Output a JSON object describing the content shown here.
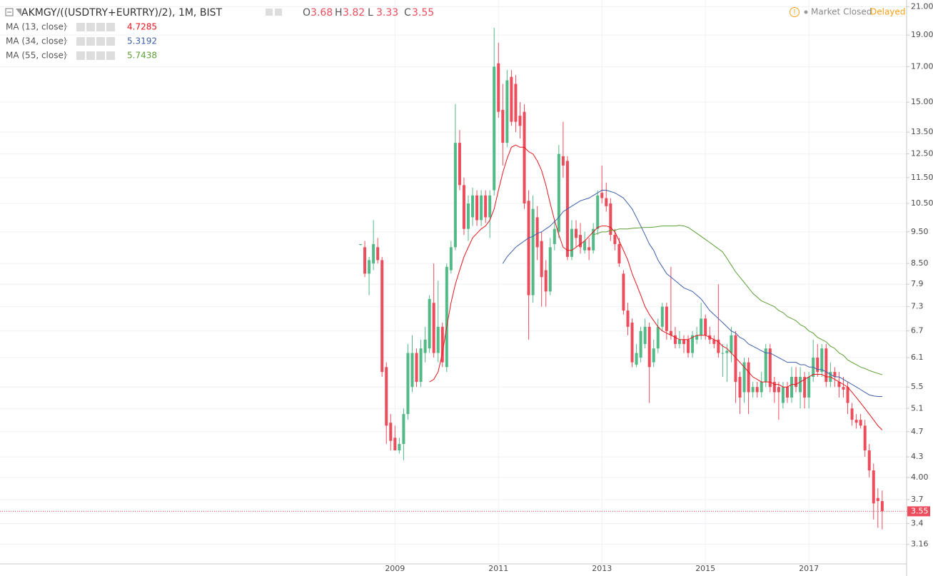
{
  "chart_data": {
    "type": "candlestick",
    "title": "AKMGY/((USDTRY+EURTRY)/2), 1M, BIST",
    "ohlc_labels": [
      "O",
      "H",
      "L",
      "C"
    ],
    "status": "Market Closed",
    "delay": "Delayed",
    "up_color": "#53b987",
    "down_color": "#eb4d5c",
    "log_scale": true,
    "grid": true,
    "ylim": [
      2.95,
      21.5
    ],
    "yticks": [
      {
        "value": 21,
        "label": "21.00"
      },
      {
        "value": 19,
        "label": "19.00"
      },
      {
        "value": 17,
        "label": "17.00"
      },
      {
        "value": 15,
        "label": "15.00"
      },
      {
        "value": 13.5,
        "label": "13.50"
      },
      {
        "value": 12.5,
        "label": "12.50"
      },
      {
        "value": 11.5,
        "label": "11.50"
      },
      {
        "value": 10.5,
        "label": "10.50"
      },
      {
        "value": 9.5,
        "label": "9.50"
      },
      {
        "value": 8.5,
        "label": "8.50"
      },
      7.9,
      7.3,
      6.7,
      6.1,
      5.5,
      5.1,
      4.7,
      4.3,
      {
        "value": 4,
        "label": "4.00"
      },
      3.7,
      3.4,
      3.16
    ],
    "categories": [
      null,
      null,
      null,
      null,
      null,
      null,
      null,
      null,
      "2009",
      null,
      null,
      null,
      null,
      null,
      null,
      null,
      null,
      null,
      null,
      null,
      null,
      null,
      null,
      null,
      null,
      null,
      null,
      null,
      null,
      null,
      null,
      null,
      "2011",
      null,
      null,
      null,
      null,
      null,
      null,
      null,
      null,
      null,
      null,
      null,
      null,
      null,
      null,
      null,
      null,
      null,
      null,
      null,
      null,
      null,
      null,
      null,
      "2013",
      null,
      null,
      null,
      null,
      null,
      null,
      null,
      null,
      null,
      null,
      null,
      null,
      null,
      null,
      null,
      null,
      null,
      null,
      null,
      null,
      null,
      null,
      null,
      "2015",
      null,
      null,
      null,
      null,
      null,
      null,
      null,
      null,
      null,
      null,
      null,
      null,
      null,
      null,
      null,
      null,
      null,
      null,
      null,
      null,
      null,
      null,
      null,
      "2017",
      null,
      null,
      null,
      null,
      null,
      null,
      null,
      null,
      null,
      null,
      null,
      null,
      null,
      null,
      null,
      null,
      null
    ],
    "open": [
      9.08,
      9.0,
      8.2,
      8.5,
      9.0,
      8.6,
      5.9,
      4.85,
      4.6,
      4.4,
      4.5,
      5.0,
      5.5,
      6.2,
      5.6,
      6.2,
      6.3,
      7.4,
      6.2,
      6.8,
      5.9,
      8.3,
      9.0,
      13.0,
      11.2,
      9.6,
      10.0,
      10.8,
      9.9,
      10.8,
      10.0,
      11.0,
      17.2,
      14.6,
      13.0,
      16.4,
      16.0,
      14.3,
      14.5,
      10.6,
      7.6,
      10.0,
      9.2,
      8.3,
      7.7,
      9.1,
      9.5,
      12.4,
      12.2,
      8.7,
      9.6,
      9.4,
      8.9,
      9.0,
      8.9,
      9.6,
      10.9,
      10.7,
      10.5,
      9.4,
      9.1,
      8.2,
      7.2,
      6.9,
      5.95,
      6.1,
      6.4,
      6.8,
      6.0,
      6.3,
      6.8,
      7.3,
      6.7,
      6.6,
      6.4,
      6.5,
      6.5,
      6.2,
      6.5,
      6.6,
      7.0,
      6.6,
      6.5,
      6.5,
      6.2,
      6.2,
      6.2,
      6.6,
      5.7,
      5.4,
      6.0,
      5.4,
      5.5,
      5.4,
      5.6,
      6.3,
      5.6,
      5.5,
      5.2,
      5.5,
      5.3,
      5.7,
      5.4,
      5.7,
      5.3,
      5.7,
      6.1,
      5.8,
      6.3,
      5.6,
      5.8,
      5.6,
      5.5,
      5.5,
      5.1,
      4.9,
      4.9,
      4.8,
      4.4,
      4.1,
      3.72,
      3.68
    ],
    "high": [
      9.1,
      9.2,
      8.7,
      9.9,
      9.3,
      8.7,
      6.0,
      5.0,
      4.8,
      4.6,
      5.1,
      6.4,
      6.6,
      6.3,
      6.5,
      6.8,
      7.6,
      8.5,
      8.0,
      6.9,
      8.5,
      9.2,
      14.9,
      13.6,
      11.5,
      10.8,
      11.1,
      11.0,
      11.0,
      11.0,
      11.0,
      19.5,
      18.5,
      16.0,
      16.8,
      16.8,
      16.5,
      15.0,
      14.9,
      11.0,
      10.8,
      10.4,
      9.5,
      8.6,
      9.3,
      9.9,
      12.9,
      14.0,
      12.4,
      9.9,
      9.9,
      9.8,
      9.5,
      9.3,
      9.8,
      11.0,
      12.0,
      11.3,
      10.7,
      9.6,
      9.3,
      8.3,
      7.4,
      7.0,
      6.4,
      6.8,
      7.0,
      6.9,
      6.5,
      7.0,
      7.4,
      7.4,
      8.4,
      6.8,
      6.7,
      6.6,
      6.6,
      6.7,
      6.8,
      7.4,
      7.1,
      6.8,
      6.6,
      7.9,
      6.4,
      6.4,
      6.8,
      6.7,
      5.8,
      6.1,
      6.1,
      5.6,
      5.6,
      5.8,
      6.4,
      6.4,
      5.7,
      5.6,
      5.6,
      5.6,
      5.9,
      5.9,
      5.9,
      5.8,
      5.8,
      6.5,
      6.4,
      6.4,
      6.4,
      6.0,
      5.9,
      5.8,
      5.7,
      5.6,
      5.2,
      5.0,
      5.0,
      4.9,
      4.5,
      4.2,
      3.85,
      3.82
    ],
    "low": [
      9.05,
      8.1,
      7.6,
      8.3,
      8.5,
      5.7,
      4.5,
      4.4,
      4.4,
      4.35,
      4.25,
      4.9,
      5.4,
      5.5,
      5.5,
      6.0,
      6.2,
      6.1,
      6.0,
      5.9,
      5.8,
      8.2,
      8.9,
      11.0,
      9.4,
      9.2,
      9.7,
      9.7,
      9.7,
      9.8,
      9.3,
      10.8,
      14.2,
      12.0,
      12.8,
      13.8,
      13.5,
      13.2,
      10.3,
      6.5,
      7.4,
      8.6,
      7.3,
      7.3,
      7.6,
      8.9,
      9.3,
      11.5,
      8.6,
      8.6,
      9.0,
      8.8,
      8.8,
      8.6,
      8.8,
      9.4,
      10.5,
      10.2,
      9.2,
      8.9,
      8.4,
      7.1,
      6.6,
      5.9,
      5.9,
      6.0,
      6.3,
      5.2,
      5.9,
      6.2,
      6.7,
      6.5,
      6.5,
      6.3,
      6.3,
      6.2,
      6.1,
      6.1,
      6.4,
      6.5,
      6.5,
      6.4,
      6.3,
      6.1,
      5.7,
      5.6,
      6.0,
      5.2,
      5.0,
      5.2,
      5.0,
      5.3,
      5.3,
      5.3,
      5.5,
      5.4,
      5.2,
      4.9,
      5.1,
      5.2,
      5.2,
      5.4,
      5.1,
      5.1,
      5.1,
      5.6,
      5.7,
      5.7,
      5.5,
      5.5,
      5.5,
      5.3,
      5.3,
      5.0,
      4.8,
      4.75,
      4.75,
      4.3,
      4.0,
      3.45,
      3.35,
      3.33
    ],
    "close": [
      9.1,
      8.2,
      8.6,
      9.1,
      8.6,
      5.8,
      4.8,
      4.55,
      4.4,
      4.5,
      5.0,
      6.2,
      6.2,
      5.6,
      6.3,
      6.5,
      7.5,
      6.2,
      6.8,
      6.0,
      8.4,
      9.0,
      13.0,
      11.2,
      9.6,
      10.5,
      10.8,
      9.9,
      10.8,
      10.0,
      10.8,
      17.0,
      14.5,
      13.0,
      16.2,
      14.0,
      14.0,
      13.8,
      10.5,
      7.6,
      10.3,
      9.0,
      8.1,
      7.7,
      9.0,
      9.6,
      12.5,
      12.0,
      8.7,
      9.6,
      9.3,
      9.0,
      9.2,
      8.9,
      9.6,
      10.8,
      10.7,
      10.4,
      9.4,
      9.1,
      8.5,
      7.2,
      6.8,
      6.0,
      6.2,
      6.7,
      6.8,
      5.9,
      6.3,
      6.8,
      7.3,
      6.7,
      6.6,
      6.4,
      6.5,
      6.4,
      6.2,
      6.6,
      6.6,
      7.0,
      6.6,
      6.5,
      6.4,
      6.2,
      6.2,
      6.25,
      6.6,
      5.6,
      5.3,
      6.0,
      5.4,
      5.5,
      5.4,
      5.6,
      6.3,
      5.5,
      5.4,
      5.4,
      5.5,
      5.3,
      5.7,
      5.5,
      5.7,
      5.3,
      5.7,
      6.1,
      5.8,
      6.3,
      5.6,
      5.8,
      5.7,
      5.5,
      5.45,
      5.2,
      4.9,
      4.85,
      4.8,
      4.4,
      4.1,
      3.65,
      3.68,
      3.55
    ],
    "series": [
      {
        "name": "MA (13, close)",
        "color": "#e5161d",
        "values": [
          null,
          null,
          null,
          null,
          null,
          null,
          null,
          null,
          null,
          null,
          null,
          null,
          null,
          null,
          null,
          null,
          5.6,
          5.65,
          5.8,
          6.2,
          6.8,
          7.4,
          7.9,
          8.3,
          8.7,
          9.0,
          9.3,
          9.45,
          9.6,
          9.7,
          9.9,
          10.3,
          11.0,
          11.7,
          12.3,
          12.8,
          12.9,
          12.8,
          12.8,
          12.6,
          12.5,
          12.2,
          11.8,
          11.2,
          10.5,
          9.9,
          9.4,
          9.0,
          8.9,
          8.9,
          9.0,
          9.1,
          9.2,
          9.35,
          9.5,
          9.65,
          9.7,
          9.7,
          9.65,
          9.5,
          9.2,
          8.9,
          8.6,
          8.2,
          7.9,
          7.6,
          7.3,
          7.1,
          6.95,
          6.8,
          6.7,
          6.65,
          6.6,
          6.55,
          6.5,
          6.5,
          6.5,
          6.55,
          6.6,
          6.6,
          6.6,
          6.55,
          6.5,
          6.45,
          6.35,
          6.3,
          6.2,
          6.1,
          6.0,
          5.9,
          5.8,
          5.7,
          5.65,
          5.6,
          5.6,
          5.6,
          5.55,
          5.55,
          5.5,
          5.5,
          5.55,
          5.55,
          5.6,
          5.65,
          5.7,
          5.75,
          5.75,
          5.75,
          5.7,
          5.7,
          5.65,
          5.6,
          5.55,
          5.5,
          5.4,
          5.3,
          5.2,
          5.1,
          5.0,
          4.9,
          4.8,
          4.7285
        ]
      },
      {
        "name": "MA (34, close)",
        "color": "#3d5fa8",
        "values": [
          null,
          null,
          null,
          null,
          null,
          null,
          null,
          null,
          null,
          null,
          null,
          null,
          null,
          null,
          null,
          null,
          null,
          null,
          null,
          null,
          null,
          null,
          null,
          null,
          null,
          null,
          null,
          null,
          null,
          null,
          null,
          null,
          null,
          8.5,
          8.7,
          8.85,
          9.0,
          9.1,
          9.2,
          9.3,
          9.35,
          9.45,
          9.5,
          9.6,
          9.7,
          9.85,
          10.0,
          10.2,
          10.3,
          10.4,
          10.5,
          10.6,
          10.65,
          10.7,
          10.8,
          10.9,
          11.0,
          11.0,
          10.95,
          10.9,
          10.8,
          10.7,
          10.5,
          10.3,
          10.0,
          9.7,
          9.4,
          9.1,
          8.9,
          8.6,
          8.4,
          8.2,
          8.1,
          8.0,
          7.9,
          7.8,
          7.75,
          7.7,
          7.6,
          7.5,
          7.35,
          7.2,
          7.1,
          7.0,
          6.9,
          6.8,
          6.7,
          6.65,
          6.55,
          6.5,
          6.4,
          6.35,
          6.3,
          6.25,
          6.2,
          6.2,
          6.15,
          6.1,
          6.05,
          6.0,
          6.0,
          6.0,
          5.95,
          5.95,
          5.9,
          5.9,
          5.85,
          5.85,
          5.8,
          5.75,
          5.7,
          5.7,
          5.65,
          5.6,
          5.55,
          5.5,
          5.45,
          5.4,
          5.35,
          5.33,
          5.32,
          5.3192
        ]
      },
      {
        "name": "MA (55, close)",
        "color": "#5c9e35",
        "values": [
          null,
          null,
          null,
          null,
          null,
          null,
          null,
          null,
          null,
          null,
          null,
          null,
          null,
          null,
          null,
          null,
          null,
          null,
          null,
          null,
          null,
          null,
          null,
          null,
          null,
          null,
          null,
          null,
          null,
          null,
          null,
          null,
          null,
          null,
          null,
          null,
          null,
          null,
          null,
          null,
          null,
          null,
          null,
          null,
          null,
          null,
          null,
          null,
          null,
          null,
          null,
          null,
          null,
          null,
          9.4,
          9.45,
          9.5,
          9.5,
          9.55,
          9.55,
          9.6,
          9.6,
          9.6,
          9.62,
          9.63,
          9.64,
          9.65,
          9.65,
          9.66,
          9.68,
          9.7,
          9.7,
          9.7,
          9.7,
          9.72,
          9.7,
          9.65,
          9.55,
          9.45,
          9.35,
          9.25,
          9.15,
          9.05,
          8.95,
          8.85,
          8.65,
          8.45,
          8.25,
          8.1,
          7.95,
          7.8,
          7.65,
          7.55,
          7.45,
          7.4,
          7.35,
          7.3,
          7.2,
          7.15,
          7.05,
          7.0,
          6.95,
          6.85,
          6.8,
          6.7,
          6.65,
          6.55,
          6.5,
          6.45,
          6.35,
          6.3,
          6.2,
          6.15,
          6.05,
          6.0,
          5.95,
          5.9,
          5.87,
          5.83,
          5.8,
          5.77,
          5.7438
        ]
      }
    ]
  }
}
